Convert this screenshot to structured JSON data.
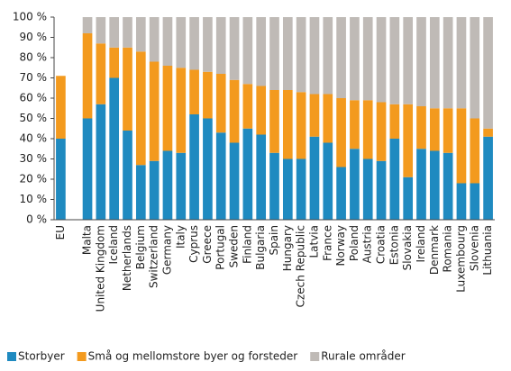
{
  "chart_data": {
    "type": "stacked_bar",
    "categories": [
      "EU",
      null,
      "Malta",
      "United Kingdom",
      "Iceland",
      "Netherlands",
      "Belgium",
      "Switzerland",
      "Germany",
      "Italy",
      "Cyprus",
      "Greece",
      "Portugal",
      "Sweden",
      "Finland",
      "Bulgaria",
      "Spain",
      "Hungary",
      "Czech Republic",
      "Latvia",
      "France",
      "Norway",
      "Poland",
      "Austria",
      "Croatia",
      "Estonia",
      "Slovakia",
      "Ireland",
      "Denmark",
      "Romania",
      "Luxembourg",
      "Slovenia",
      "Lithuania"
    ],
    "series": [
      {
        "name": "Storbyer",
        "color": "#1f8ac0",
        "values": [
          40,
          null,
          50,
          57,
          70,
          44,
          27,
          29,
          34,
          33,
          52,
          50,
          43,
          38,
          45,
          42,
          33,
          30,
          30,
          41,
          38,
          26,
          35,
          30,
          29,
          40,
          21,
          35,
          34,
          33,
          18,
          18,
          41
        ]
      },
      {
        "name": "Små og mellomstore byer og forsteder",
        "color": "#f39a1e",
        "values": [
          31,
          null,
          42,
          30,
          15,
          41,
          56,
          49,
          42,
          42,
          22,
          23,
          29,
          31,
          22,
          24,
          31,
          34,
          33,
          21,
          24,
          34,
          24,
          29,
          29,
          17,
          36,
          21,
          21,
          22,
          37,
          32,
          4
        ]
      },
      {
        "name": "Rurale områder",
        "color": "#bfbab6",
        "values": [
          0,
          null,
          8,
          13,
          15,
          15,
          17,
          22,
          24,
          25,
          26,
          27,
          28,
          31,
          33,
          34,
          36,
          36,
          37,
          38,
          38,
          40,
          41,
          41,
          42,
          43,
          43,
          44,
          45,
          45,
          45,
          50,
          55
        ]
      }
    ],
    "ylim": [
      0,
      100
    ],
    "yticks": [
      {
        "value": 0,
        "label": "0 %"
      },
      {
        "value": 10,
        "label": "10 %"
      },
      {
        "value": 20,
        "label": "20 %"
      },
      {
        "value": 30,
        "label": "30 %"
      },
      {
        "value": 40,
        "label": "40 %"
      },
      {
        "value": 50,
        "label": "50 %"
      },
      {
        "value": 60,
        "label": "60 %"
      },
      {
        "value": 70,
        "label": "70 %"
      },
      {
        "value": 80,
        "label": "80 %"
      },
      {
        "value": 90,
        "label": "90 %"
      },
      {
        "value": 100,
        "label": "100 %"
      }
    ],
    "grid": false,
    "legend": "bottom"
  }
}
